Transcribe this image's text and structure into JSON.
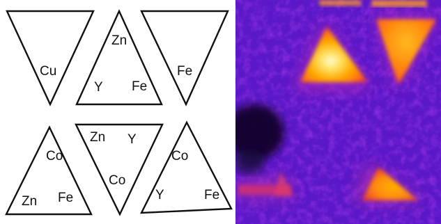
{
  "diagram": {
    "triangles": [
      {
        "id": "top-left",
        "labels": [
          "Cu"
        ]
      },
      {
        "id": "top-middle",
        "labels": [
          "Zn",
          "Y",
          "Fe"
        ]
      },
      {
        "id": "top-right",
        "labels": [
          "Fe"
        ]
      },
      {
        "id": "bottom-left",
        "labels": [
          "Co",
          "Zn",
          "Fe"
        ]
      },
      {
        "id": "bottom-middle",
        "labels": [
          "Zn",
          "Y",
          "Co"
        ]
      },
      {
        "id": "bottom-right",
        "labels": [
          "Co",
          "Y",
          "Fe"
        ]
      }
    ]
  },
  "thermal_image": {
    "colormap": [
      "#05030f",
      "#2a0a7a",
      "#6a16d0",
      "#a32ad6",
      "#e0207a",
      "#ff5a10",
      "#ffb000",
      "#fff6a0"
    ],
    "background_color": "#5a18c8",
    "hot_spots": [
      "top-middle-triangle",
      "top-right-triangle",
      "bottom-right-triangle"
    ],
    "cold_spot": "bottom-left-region"
  }
}
